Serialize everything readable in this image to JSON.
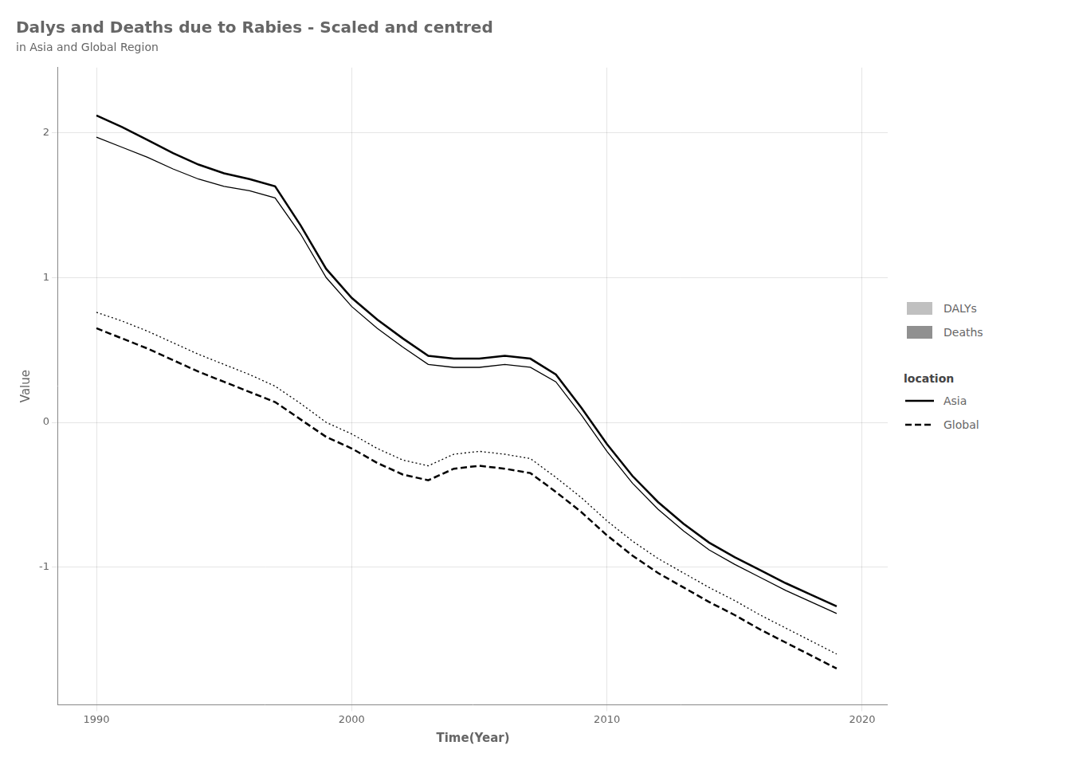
{
  "chart_data": {
    "type": "line",
    "title": "Dalys and Deaths due to Rabies - Scaled and centred",
    "subtitle": "in Asia and Global Region",
    "xlabel": "Time(Year)",
    "ylabel": "Value",
    "x": [
      1990,
      1991,
      1992,
      1993,
      1994,
      1995,
      1996,
      1997,
      1998,
      1999,
      2000,
      2001,
      2002,
      2003,
      2004,
      2005,
      2006,
      2007,
      2008,
      2009,
      2010,
      2011,
      2012,
      2013,
      2014,
      2015,
      2016,
      2017,
      2018,
      2019
    ],
    "series": [
      {
        "location": "Global",
        "measure": "Deaths",
        "color": "#000000",
        "line_style": "dashed",
        "values": [
          0.65,
          0.58,
          0.51,
          0.43,
          0.35,
          0.28,
          0.21,
          0.14,
          0.02,
          -0.1,
          -0.18,
          -0.28,
          -0.36,
          -0.4,
          -0.32,
          -0.3,
          -0.32,
          -0.35,
          -0.48,
          -0.62,
          -0.78,
          -0.92,
          -1.04,
          -1.14,
          -1.24,
          -1.33,
          -1.43,
          -1.52,
          -1.61,
          -1.7
        ]
      },
      {
        "location": "Global",
        "measure": "DALYs",
        "color": "#000000",
        "line_style": "dotted",
        "values": [
          0.76,
          0.7,
          0.63,
          0.55,
          0.47,
          0.4,
          0.33,
          0.25,
          0.13,
          0.0,
          -0.08,
          -0.18,
          -0.26,
          -0.3,
          -0.22,
          -0.2,
          -0.22,
          -0.25,
          -0.38,
          -0.52,
          -0.68,
          -0.82,
          -0.94,
          -1.04,
          -1.14,
          -1.23,
          -1.33,
          -1.42,
          -1.51,
          -1.6
        ]
      },
      {
        "location": "Asia",
        "measure": "Deaths",
        "color": "#000000",
        "line_style": "solid",
        "values": [
          2.12,
          2.04,
          1.95,
          1.86,
          1.78,
          1.72,
          1.68,
          1.63,
          1.36,
          1.06,
          0.86,
          0.71,
          0.58,
          0.46,
          0.44,
          0.44,
          0.46,
          0.44,
          0.33,
          0.1,
          -0.15,
          -0.37,
          -0.55,
          -0.7,
          -0.83,
          -0.93,
          -1.02,
          -1.11,
          -1.19,
          -1.27
        ]
      },
      {
        "location": "Asia",
        "measure": "DALYs",
        "color": "#000000",
        "line_style": "solid",
        "values": [
          1.97,
          1.9,
          1.83,
          1.75,
          1.68,
          1.63,
          1.6,
          1.55,
          1.3,
          1.0,
          0.8,
          0.65,
          0.52,
          0.4,
          0.38,
          0.38,
          0.4,
          0.38,
          0.28,
          0.05,
          -0.2,
          -0.42,
          -0.6,
          -0.75,
          -0.88,
          -0.98,
          -1.07,
          -1.16,
          -1.24,
          -1.32
        ]
      }
    ],
    "xlim": [
      1988.5,
      2021
    ],
    "xticks": [
      1990,
      2000,
      2010,
      2020
    ],
    "ylim": [
      -1.95,
      2.45
    ],
    "yticks": [
      -1,
      0,
      1,
      2
    ],
    "grid": true,
    "legend": "right",
    "legend_groups": [
      {
        "entries": [
          {
            "name": "DALYs",
            "color": "#c0c0c0"
          },
          {
            "name": "Deaths",
            "color": "#909090"
          }
        ]
      },
      {
        "title": "location",
        "entries": [
          {
            "name": "Asia",
            "line_style": "solid"
          },
          {
            "name": "Global",
            "line_style": "dashed"
          }
        ]
      }
    ]
  }
}
